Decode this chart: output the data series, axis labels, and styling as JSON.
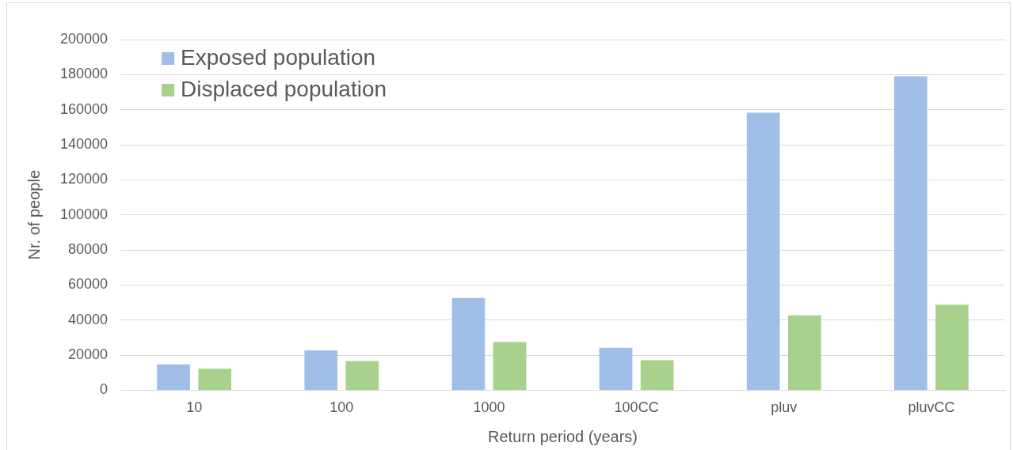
{
  "chart_data": {
    "type": "bar",
    "xlabel": "Return period (years)",
    "ylabel": "Nr. of people",
    "categories": [
      "10",
      "100",
      "1000",
      "100CC",
      "pluv",
      "pluvCC"
    ],
    "series": [
      {
        "name": "Exposed population",
        "color": "#a0bfe8",
        "values": [
          14700,
          22700,
          52600,
          24200,
          158300,
          179000
        ]
      },
      {
        "name": "Displaced population",
        "color": "#a8d18d",
        "values": [
          12300,
          16600,
          27500,
          17100,
          42700,
          48800
        ]
      }
    ],
    "ylim": [
      0,
      200000
    ],
    "yticks": [
      0,
      20000,
      40000,
      60000,
      80000,
      100000,
      120000,
      140000,
      160000,
      180000,
      200000
    ],
    "grid": "y",
    "legend": "top left"
  }
}
